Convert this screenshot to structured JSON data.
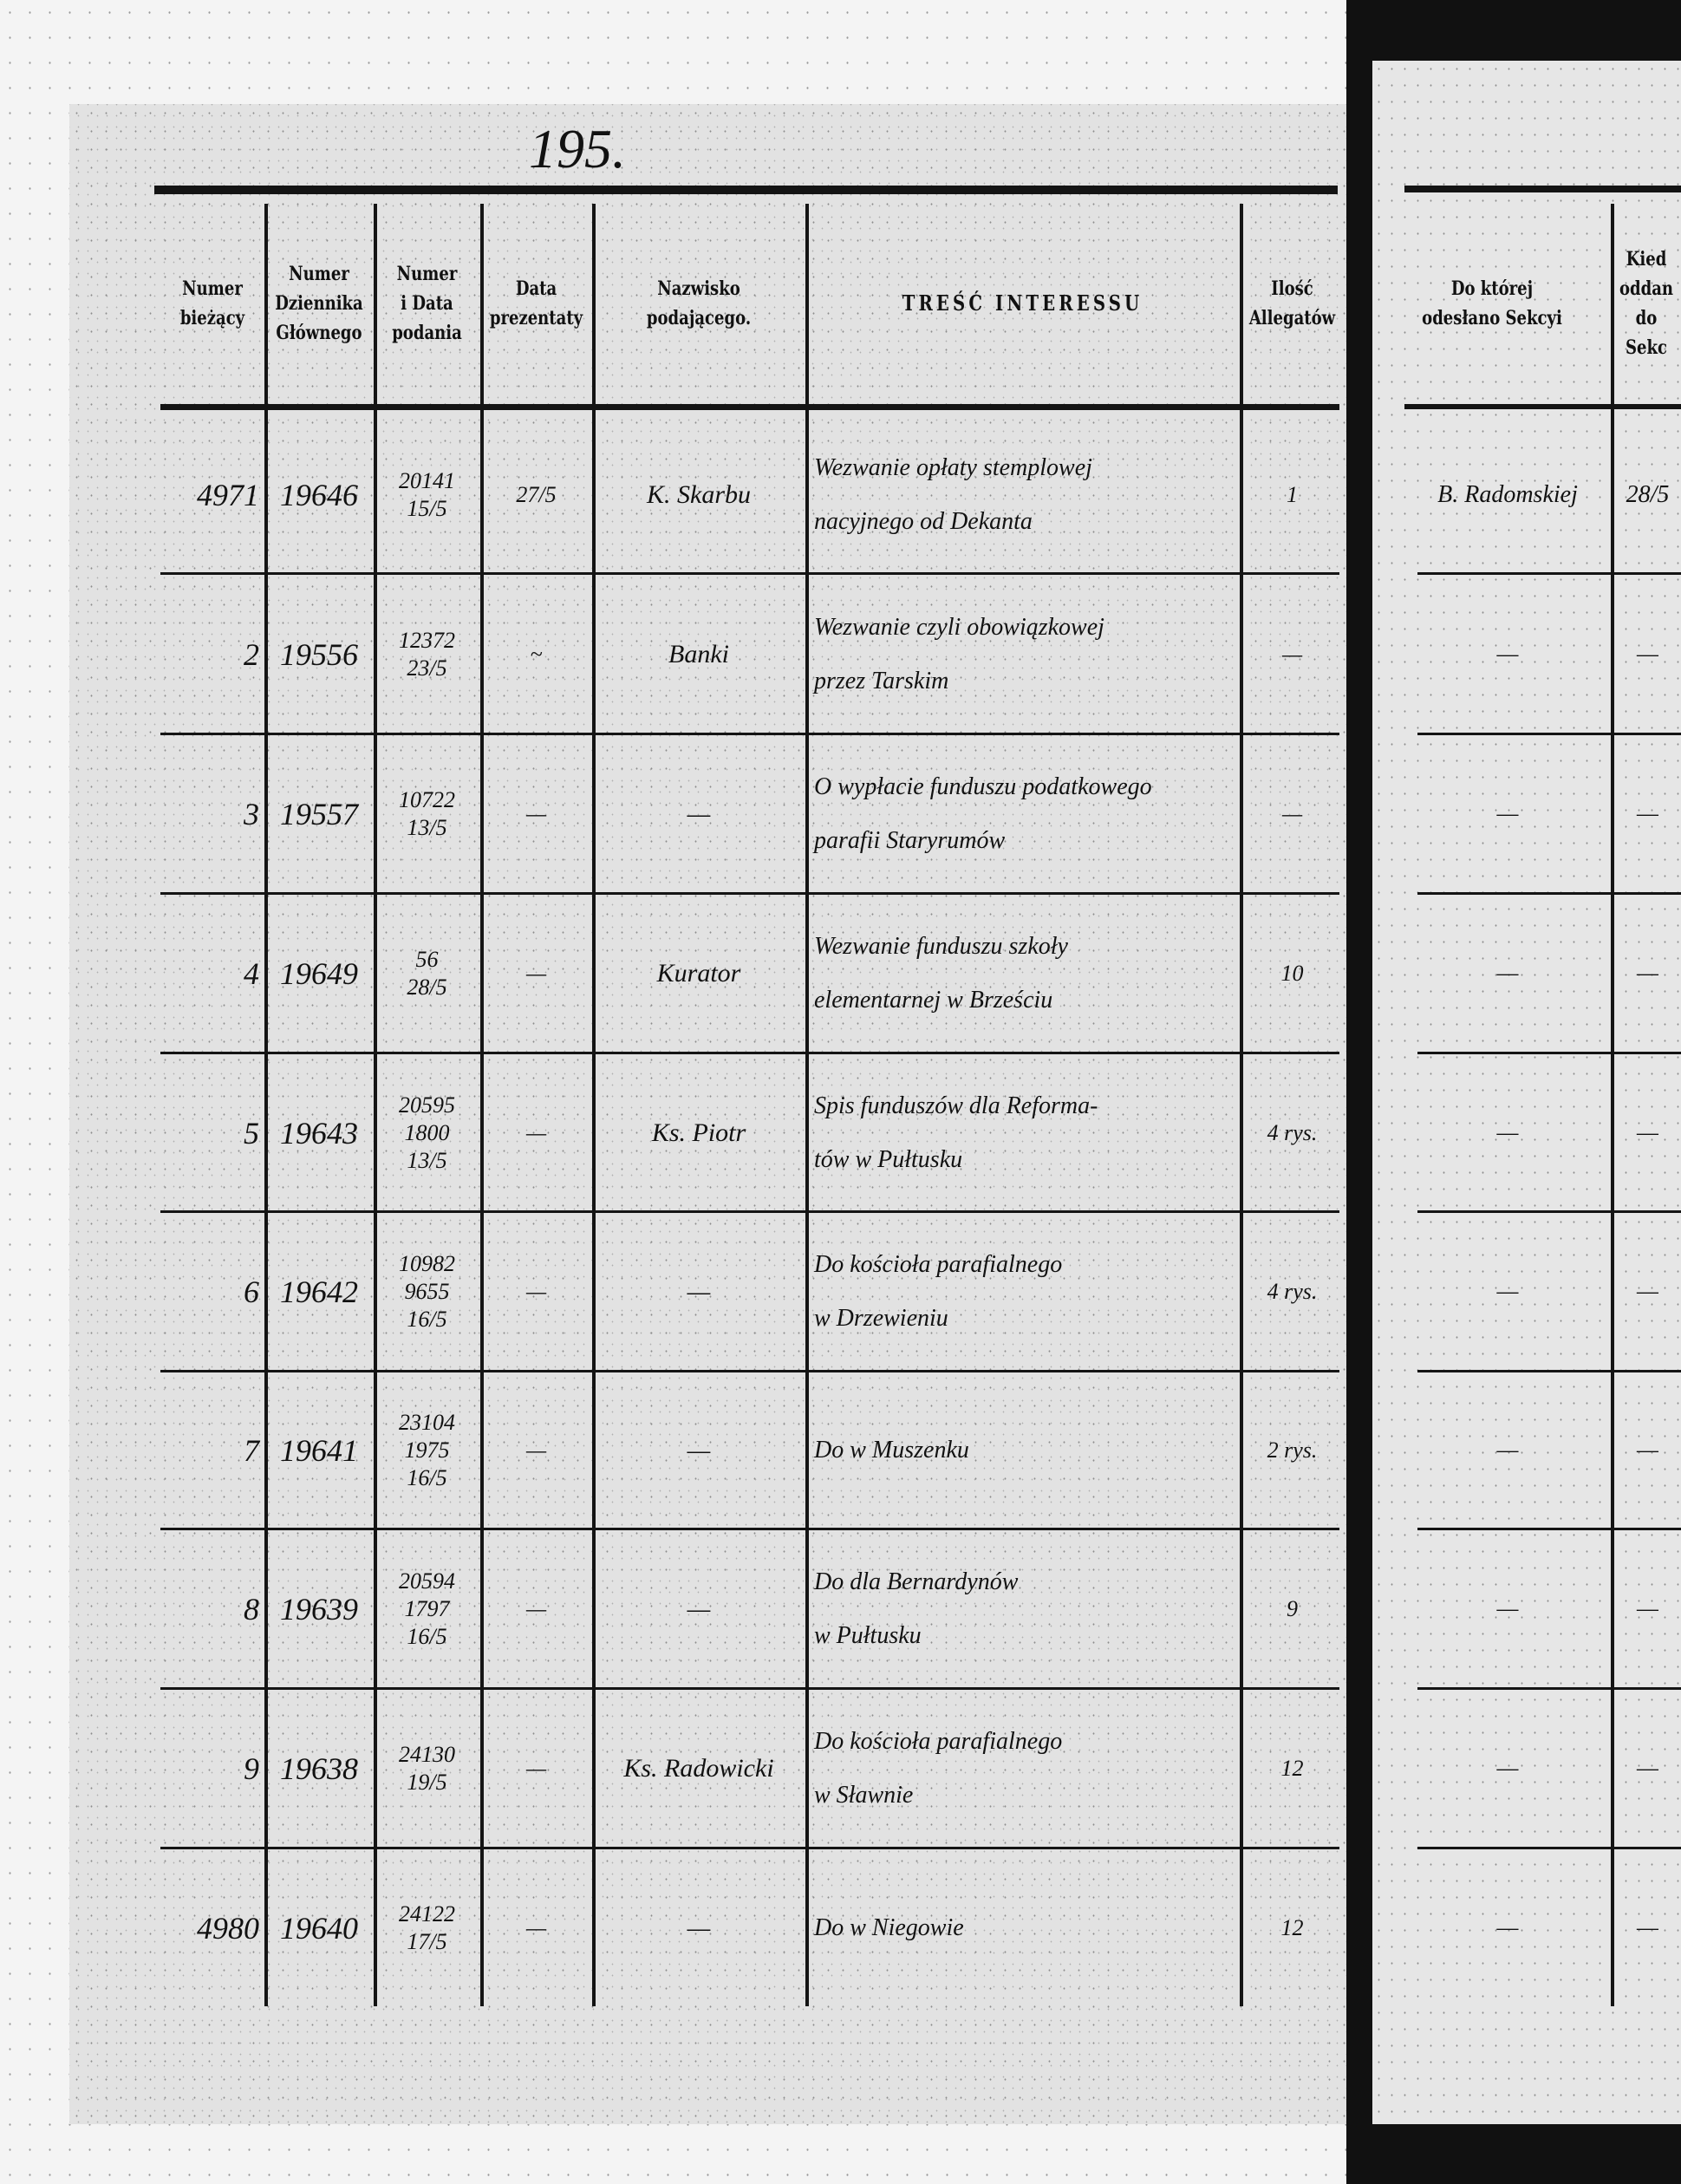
{
  "page_number": "195.",
  "headers": [
    "Numer\nbieżący",
    "Numer\nDziennika\nGłównego",
    "Numer\ni Data\npodania",
    "Data\nprezentaty",
    "Nazwisko\npodającego.",
    "TREŚĆ INTERESSU",
    "Ilość\nAllegatów",
    "Do której\nodesłano Sekcyi",
    "Kied\noddan\ndo\nSekc"
  ],
  "rows": [
    {
      "numer": "4971",
      "dziennik": "19646",
      "podanie": "20141\n15/5",
      "prezentata": "27/5",
      "nazwisko": "K. Skarbu",
      "tresc": "Wezwanie opłaty stemplowej\nnacyjnego od Dekanta",
      "allegaty": "1",
      "sekcja": "B. Radomskiej",
      "kiedy": "28/5"
    },
    {
      "numer": "2",
      "dziennik": "19556",
      "podanie": "12372\n23/5",
      "prezentata": "~",
      "nazwisko": "Banki",
      "tresc": "Wezwanie czyli obowiązkowej\nprzez Tarskim",
      "allegaty": "—",
      "sekcja": "—",
      "kiedy": "—"
    },
    {
      "numer": "3",
      "dziennik": "19557",
      "podanie": "10722\n13/5",
      "prezentata": "—",
      "nazwisko": "—",
      "tresc": "O wypłacie funduszu podatkowego\nparafii Staryrumów",
      "allegaty": "—",
      "sekcja": "—",
      "kiedy": "—"
    },
    {
      "numer": "4",
      "dziennik": "19649",
      "podanie": "56\n28/5",
      "prezentata": "—",
      "nazwisko": "Kurator",
      "tresc": "Wezwanie funduszu szkoły\nelementarnej w Brześciu",
      "allegaty": "10",
      "sekcja": "—",
      "kiedy": "—"
    },
    {
      "numer": "5",
      "dziennik": "19643",
      "podanie": "20595\n1800\n13/5",
      "prezentata": "—",
      "nazwisko": "Ks. Piotr",
      "tresc": "Spis funduszów dla Reforma-\ntów w Pułtusku",
      "allegaty": "4 rys.",
      "sekcja": "—",
      "kiedy": "—"
    },
    {
      "numer": "6",
      "dziennik": "19642",
      "podanie": "10982\n9655\n16/5",
      "prezentata": "—",
      "nazwisko": "—",
      "tresc": "Do kościoła parafialnego\nw Drzewieniu",
      "allegaty": "4 rys.",
      "sekcja": "—",
      "kiedy": "—"
    },
    {
      "numer": "7",
      "dziennik": "19641",
      "podanie": "23104\n1975\n16/5",
      "prezentata": "—",
      "nazwisko": "—",
      "tresc": "Do w Muszenku",
      "allegaty": "2 rys.",
      "sekcja": "—",
      "kiedy": "—"
    },
    {
      "numer": "8",
      "dziennik": "19639",
      "podanie": "20594\n1797\n16/5",
      "prezentata": "—",
      "nazwisko": "—",
      "tresc": "Do dla Bernardynów\nw Pułtusku",
      "allegaty": "9",
      "sekcja": "—",
      "kiedy": "—"
    },
    {
      "numer": "9",
      "dziennik": "19638",
      "podanie": "24130\n19/5",
      "prezentata": "—",
      "nazwisko": "Ks. Radowicki",
      "tresc": "Do kościoła parafialnego\nw Sławnie",
      "allegaty": "12",
      "sekcja": "—",
      "kiedy": "—"
    },
    {
      "numer": "4980",
      "dziennik": "19640",
      "podanie": "24122\n17/5",
      "prezentata": "—",
      "nazwisko": "—",
      "tresc": "Do w Niegowie",
      "allegaty": "12",
      "sekcja": "—",
      "kiedy": "—"
    }
  ]
}
